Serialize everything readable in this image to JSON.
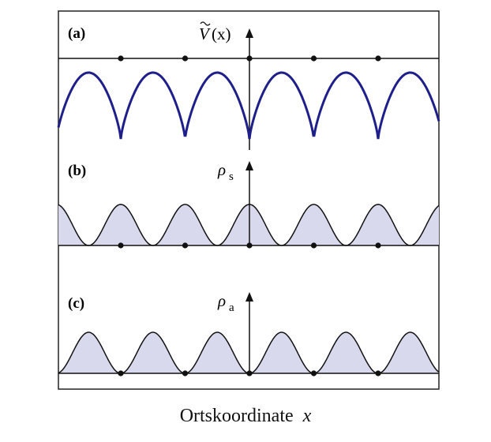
{
  "panels": [
    {
      "label": "(a)",
      "axis_symbol": "V",
      "axis_arg": "(x)",
      "curve": "potential",
      "curve_color": "#1f1f8c"
    },
    {
      "label": "(b)",
      "axis_symbol": "ρ",
      "axis_sub": "s",
      "curve": "symmetric density",
      "fill_color": "#d9d9ee"
    },
    {
      "label": "(c)",
      "axis_symbol": "ρ",
      "axis_sub": "a",
      "curve": "antisymmetric density",
      "fill_color": "#d9d9ee"
    }
  ],
  "caption": {
    "text": "Ortskoordinate",
    "variable": "x"
  },
  "lattice_period_count": 6
}
